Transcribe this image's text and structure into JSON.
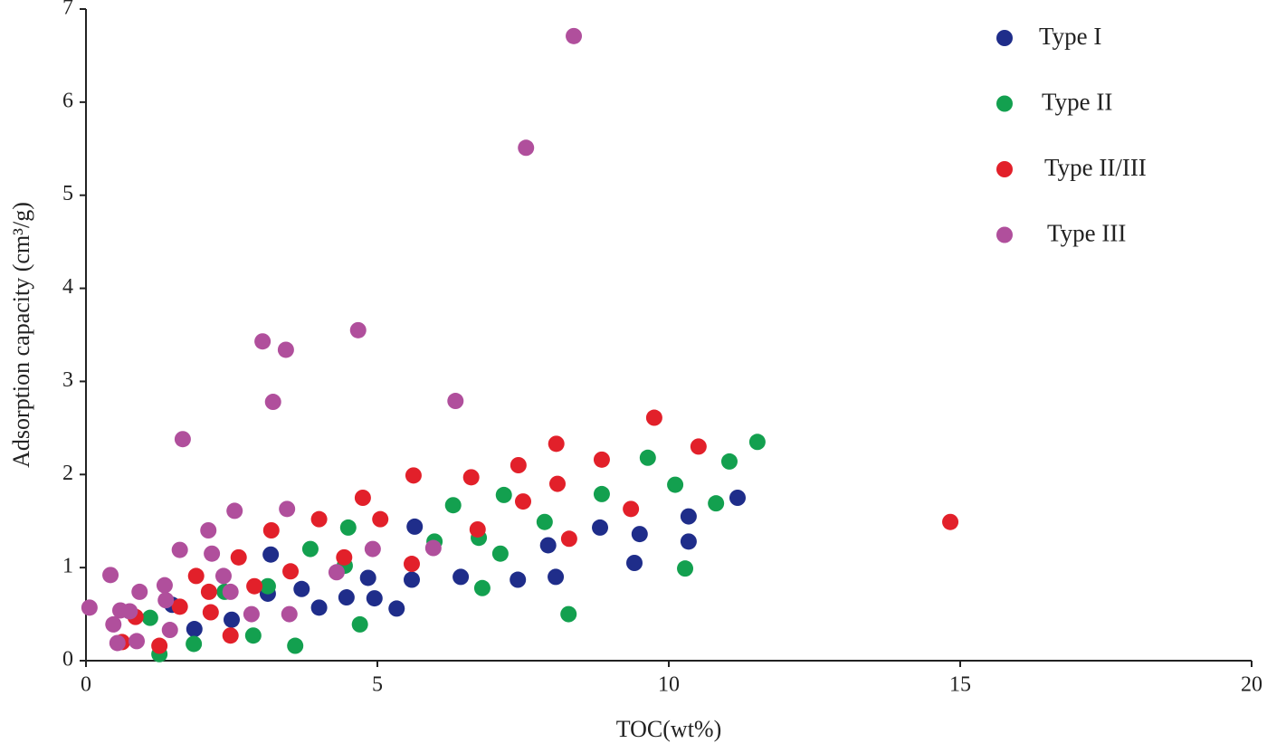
{
  "chart_data": {
    "type": "scatter",
    "x_label": "TOC(wt%)",
    "y_label": "Adsorption capacity (cm³/g)",
    "xlim": [
      0,
      20
    ],
    "ylim": [
      0,
      7
    ],
    "xticks": [
      0,
      5,
      10,
      15,
      20
    ],
    "yticks": [
      0,
      1,
      2,
      3,
      4,
      5,
      6,
      7
    ],
    "legend": "upper right",
    "series": [
      {
        "name": "Type I",
        "color": "#1f2d8a",
        "x": [
          1.48,
          1.86,
          2.5,
          3.12,
          3.17,
          3.7,
          4.0,
          4.47,
          4.84,
          4.95,
          5.33,
          5.59,
          5.64,
          6.43,
          7.41,
          7.93,
          8.06,
          8.82,
          9.41,
          9.5,
          10.34,
          10.34,
          11.18
        ],
        "values": [
          0.6,
          0.34,
          0.44,
          0.72,
          1.14,
          0.77,
          0.57,
          0.68,
          0.89,
          0.67,
          0.56,
          0.87,
          1.44,
          0.9,
          0.87,
          1.24,
          0.9,
          1.43,
          1.05,
          1.36,
          1.55,
          1.28,
          1.75
        ]
      },
      {
        "name": "Type II",
        "color": "#13a04f",
        "x": [
          1.1,
          1.26,
          1.85,
          2.38,
          2.87,
          3.12,
          3.59,
          3.85,
          4.44,
          4.5,
          4.7,
          5.98,
          6.3,
          6.74,
          6.8,
          7.11,
          7.17,
          7.87,
          8.28,
          8.85,
          9.64,
          10.11,
          10.28,
          10.81,
          11.04,
          11.52
        ],
        "values": [
          0.46,
          0.07,
          0.18,
          0.74,
          0.27,
          0.8,
          0.16,
          1.2,
          1.02,
          1.43,
          0.39,
          1.28,
          1.67,
          1.32,
          0.78,
          1.15,
          1.78,
          1.49,
          0.5,
          1.79,
          2.18,
          1.89,
          0.99,
          1.69,
          2.14,
          2.35
        ]
      },
      {
        "name": "Type II/III",
        "color": "#e2202a",
        "x": [
          0.62,
          0.85,
          1.26,
          1.61,
          1.89,
          2.11,
          2.14,
          2.48,
          2.62,
          2.89,
          3.18,
          3.51,
          4.0,
          4.43,
          4.75,
          5.05,
          5.59,
          5.62,
          6.61,
          6.72,
          7.42,
          7.5,
          8.07,
          8.09,
          8.29,
          8.85,
          9.35,
          9.75,
          10.51,
          14.83
        ],
        "values": [
          0.2,
          0.47,
          0.16,
          0.58,
          0.91,
          0.74,
          0.52,
          0.27,
          1.11,
          0.8,
          1.4,
          0.96,
          1.52,
          1.11,
          1.75,
          1.52,
          1.04,
          1.99,
          1.97,
          1.41,
          2.1,
          1.71,
          2.33,
          1.9,
          1.31,
          2.16,
          1.63,
          2.61,
          2.3,
          1.49
        ]
      },
      {
        "name": "Type III",
        "color": "#b04f9c",
        "x": [
          0.06,
          0.42,
          0.47,
          0.54,
          0.59,
          0.75,
          0.87,
          0.92,
          1.35,
          1.37,
          1.44,
          1.61,
          1.66,
          2.1,
          2.16,
          2.36,
          2.48,
          2.55,
          2.84,
          3.03,
          3.21,
          3.43,
          3.45,
          3.49,
          4.3,
          4.67,
          4.92,
          5.96,
          6.34,
          7.55,
          8.37
        ],
        "values": [
          0.57,
          0.92,
          0.39,
          0.19,
          0.54,
          0.53,
          0.21,
          0.74,
          0.81,
          0.65,
          0.33,
          1.19,
          2.38,
          1.4,
          1.15,
          0.91,
          0.74,
          1.61,
          0.5,
          3.43,
          2.78,
          3.34,
          1.63,
          0.5,
          0.95,
          3.55,
          1.2,
          1.21,
          2.79,
          5.51,
          6.71
        ]
      }
    ]
  }
}
